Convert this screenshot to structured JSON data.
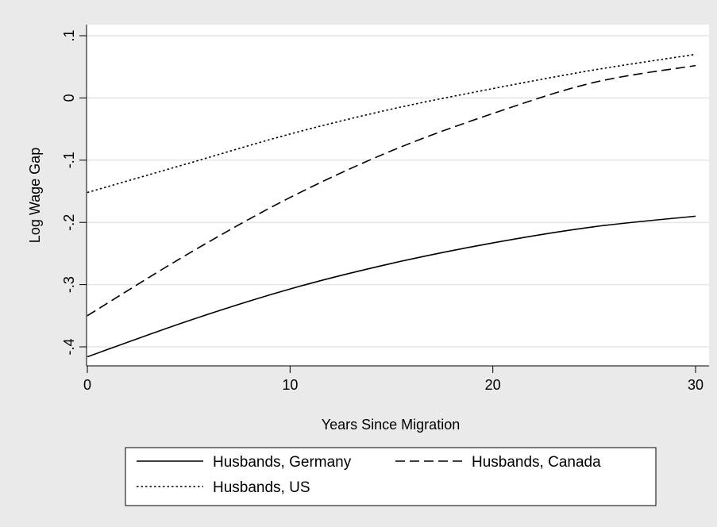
{
  "chart_data": {
    "type": "line",
    "title": "",
    "xlabel": "Years Since Migration",
    "ylabel": "Log Wage Gap",
    "xlim": [
      0,
      30
    ],
    "ylim": [
      -0.42,
      0.1
    ],
    "x_ticks": [
      0,
      10,
      20,
      30
    ],
    "x_tick_labels": [
      "0",
      "10",
      "20",
      "30"
    ],
    "y_ticks": [
      -0.4,
      -0.3,
      -0.2,
      -0.1,
      0,
      0.1
    ],
    "y_tick_labels": [
      "-.4",
      "-.3",
      "-.2",
      "-.1",
      "0",
      ".1"
    ],
    "grid": true,
    "legend_position": "bottom",
    "x": [
      0,
      5,
      10,
      15,
      20,
      25,
      30
    ],
    "series": [
      {
        "name": "Husbands, Germany",
        "style": "solid",
        "values": [
          -0.416,
          -0.358,
          -0.307,
          -0.266,
          -0.233,
          -0.207,
          -0.19
        ]
      },
      {
        "name": "Husbands, Canada",
        "style": "dashed",
        "values": [
          -0.35,
          -0.25,
          -0.16,
          -0.085,
          -0.025,
          0.025,
          0.052
        ]
      },
      {
        "name": "Husbands, US",
        "style": "dotted",
        "values": [
          -0.152,
          -0.105,
          -0.058,
          -0.018,
          0.015,
          0.045,
          0.07
        ]
      }
    ]
  }
}
